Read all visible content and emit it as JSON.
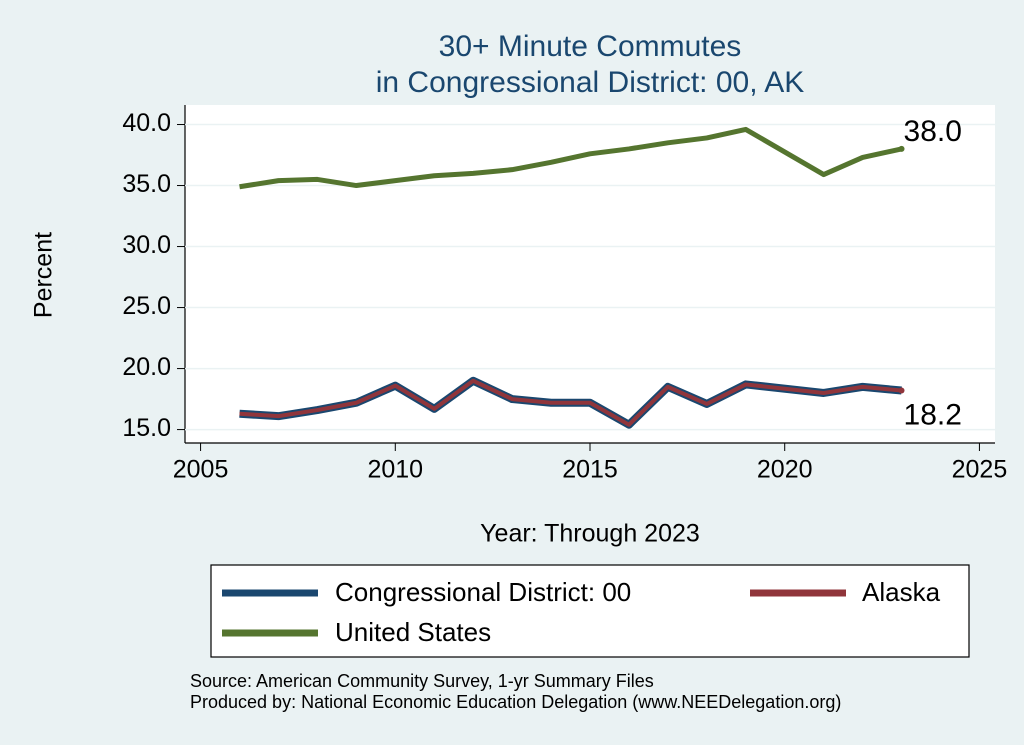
{
  "chart_data": {
    "type": "line",
    "title": [
      "30+ Minute Commutes",
      "in Congressional District:  00, AK"
    ],
    "x_label": "Year: Through 2023",
    "y_label": "Percent",
    "x": [
      2006,
      2007,
      2008,
      2009,
      2010,
      2011,
      2012,
      2013,
      2014,
      2015,
      2016,
      2017,
      2018,
      2019,
      2021,
      2022,
      2023
    ],
    "series": [
      {
        "name": "Congressional District:  00",
        "color": "#1a476f",
        "values": [
          16.3,
          16.1,
          16.6,
          17.2,
          18.6,
          16.7,
          19.0,
          17.5,
          17.2,
          17.2,
          15.4,
          18.5,
          17.1,
          18.7,
          18.0,
          18.5,
          18.2
        ]
      },
      {
        "name": "Alaska",
        "color": "#90353b",
        "values": [
          16.3,
          16.1,
          16.6,
          17.2,
          18.6,
          16.7,
          19.0,
          17.5,
          17.2,
          17.2,
          15.4,
          18.5,
          17.1,
          18.7,
          18.0,
          18.5,
          18.2
        ],
        "value_labels": [
          null,
          null,
          null,
          null,
          null,
          null,
          null,
          null,
          null,
          null,
          null,
          null,
          null,
          null,
          null,
          null,
          "18.2"
        ]
      },
      {
        "name": "United States",
        "color": "#55752f",
        "values": [
          34.9,
          35.4,
          35.5,
          35.0,
          35.4,
          35.8,
          36.0,
          36.3,
          36.9,
          37.6,
          38.0,
          38.5,
          38.9,
          39.6,
          35.9,
          37.3,
          38.0
        ],
        "value_labels": [
          null,
          null,
          null,
          null,
          null,
          null,
          null,
          null,
          null,
          null,
          null,
          null,
          null,
          null,
          null,
          null,
          "38.0"
        ]
      }
    ],
    "xlim": [
      2004.6,
      2025.4
    ],
    "xticks": [
      2005,
      2010,
      2015,
      2020,
      2025
    ],
    "ylim": [
      13.9,
      41.6
    ],
    "yticks": [
      {
        "value": 15,
        "label": "15.0"
      },
      {
        "value": 20,
        "label": "20.0"
      },
      {
        "value": 25,
        "label": "25.0"
      },
      {
        "value": 30,
        "label": "30.0"
      },
      {
        "value": 35,
        "label": "35.0"
      },
      {
        "value": 40,
        "label": "40.0"
      }
    ],
    "grid": true,
    "legend": "bottom",
    "source": [
      "Source: American Community Survey, 1-yr Summary Files",
      "Produced by: National Economic Education Delegation (www.NEEDelegation.org)"
    ]
  }
}
